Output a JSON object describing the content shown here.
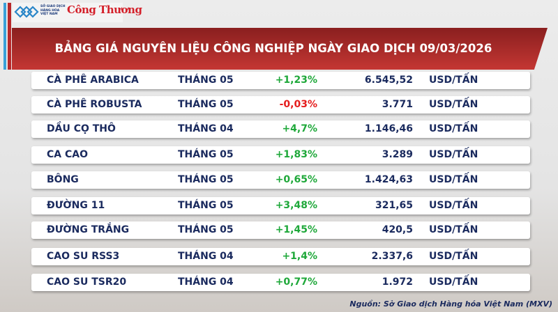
{
  "header": {
    "logo_mxv_text": "SỞ GIAO DỊCH HÀNG HÓA VIỆT NAM",
    "logo_ct_text": "Công Thương",
    "title": "BẢNG GIÁ NGUYÊN LIỆU CÔNG NGHIỆP NGÀY GIAO DỊCH 09/03/2026"
  },
  "colors": {
    "up": "#1fa83a",
    "down": "#e51c1c",
    "banner": "#c43733",
    "text": "#1a2a5e"
  },
  "rows": [
    {
      "name": "CÀ PHÊ ARABICA",
      "month": "THÁNG 05",
      "change": "+1,23%",
      "dir": "up",
      "price": "6.545,52",
      "unit": "USD/TẤN"
    },
    {
      "name": "CÀ PHÊ ROBUSTA",
      "month": "THÁNG 05",
      "change": "-0,03%",
      "dir": "down",
      "price": "3.771",
      "unit": "USD/TẤN"
    },
    {
      "name": "DẦU CỌ THÔ",
      "month": "THÁNG 04",
      "change": "+4,7%",
      "dir": "up",
      "price": "1.146,46",
      "unit": "USD/TẤN"
    },
    {
      "name": "CA CAO",
      "month": "THÁNG 05",
      "change": "+1,83%",
      "dir": "up",
      "price": "3.289",
      "unit": "USD/TẤN"
    },
    {
      "name": "BÔNG",
      "month": "THÁNG 05",
      "change": "+0,65%",
      "dir": "up",
      "price": "1.424,63",
      "unit": "USD/TẤN"
    },
    {
      "name": "ĐƯỜNG 11",
      "month": "THÁNG 05",
      "change": "+3,48%",
      "dir": "up",
      "price": "321,65",
      "unit": "USD/TẤN"
    },
    {
      "name": "ĐƯỜNG TRẮNG",
      "month": "THÁNG 05",
      "change": "+1,45%",
      "dir": "up",
      "price": "420,5",
      "unit": "USD/TẤN"
    },
    {
      "name": "CAO SU RSS3",
      "month": "THÁNG 04",
      "change": "+1,4%",
      "dir": "up",
      "price": "2.337,6",
      "unit": "USD/TẤN"
    },
    {
      "name": "CAO SU TSR20",
      "month": "THÁNG 04",
      "change": "+0,77%",
      "dir": "up",
      "price": "1.972",
      "unit": "USD/TẤN"
    }
  ],
  "footer": {
    "source": "Nguồn: Sở Giao dịch Hàng hóa Việt Nam (MXV)"
  }
}
